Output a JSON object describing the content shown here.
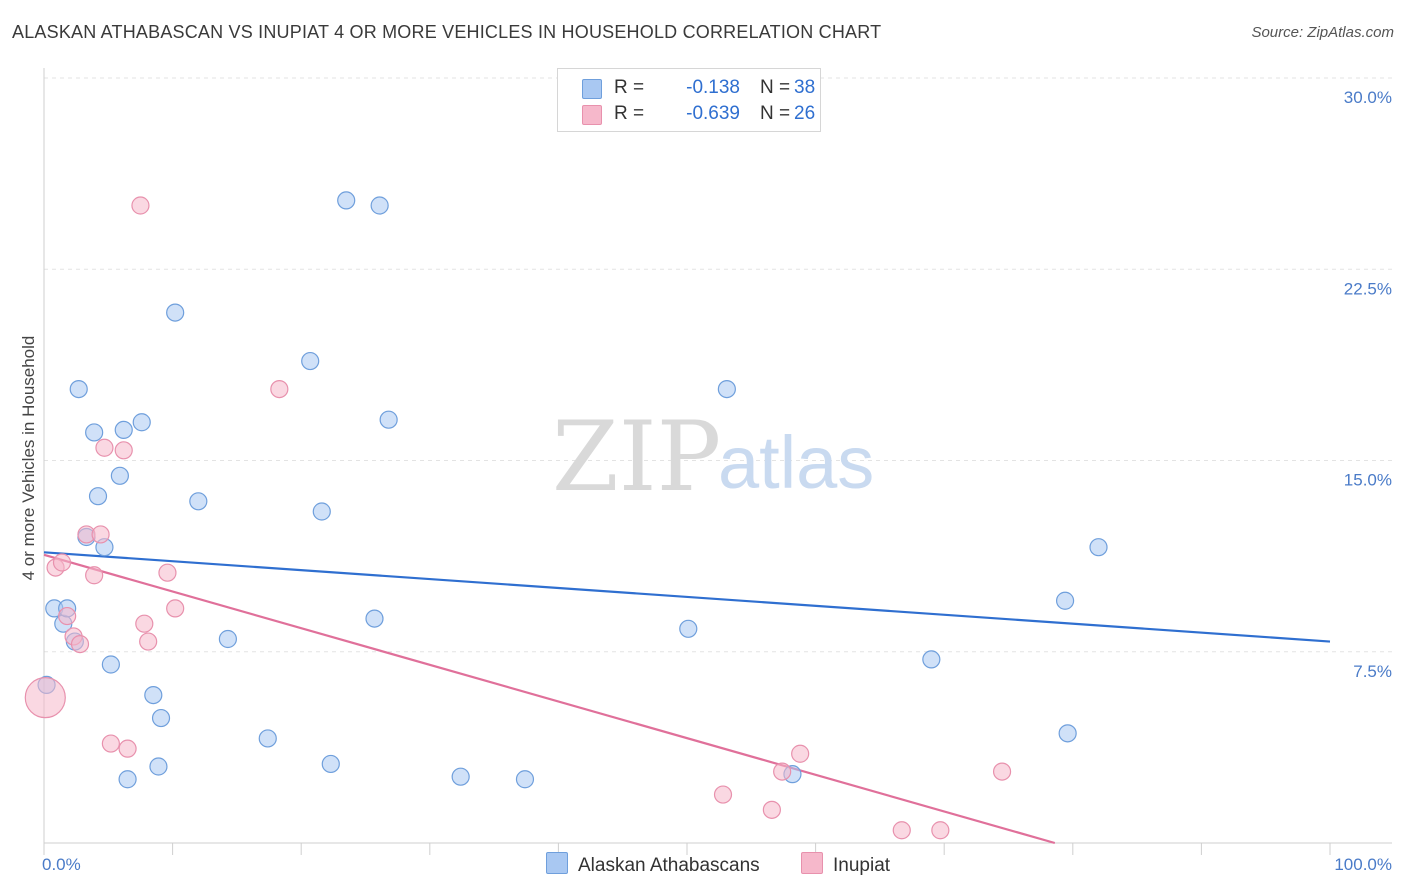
{
  "header": {
    "title": "ALASKAN ATHABASCAN VS INUPIAT 4 OR MORE VEHICLES IN HOUSEHOLD CORRELATION CHART",
    "source": "Source: ZipAtlas.com"
  },
  "watermark": {
    "zip": "ZIP",
    "atlas": "atlas"
  },
  "legend": {
    "rows": [
      {
        "r_label": "R =",
        "r_value": "-0.138",
        "n_label": "N =",
        "n_value": "38",
        "color": "#a9c8f2"
      },
      {
        "r_label": "R =",
        "r_value": "-0.639",
        "n_label": "N =",
        "n_value": "26",
        "color": "#f6b8cb"
      }
    ]
  },
  "bottom_legend": {
    "items": [
      {
        "label": "Alaskan Athabascans",
        "color": "#a9c8f2"
      },
      {
        "label": "Inupiat",
        "color": "#f6b8cb"
      }
    ]
  },
  "chart_data": {
    "type": "scatter",
    "title": "ALASKAN ATHABASCAN VS INUPIAT 4 OR MORE VEHICLES IN HOUSEHOLD CORRELATION CHART",
    "xlabel": "",
    "ylabel": "4 or more Vehicles in Household",
    "xlim": [
      0,
      100
    ],
    "ylim": [
      0,
      30
    ],
    "x_tick_labels": [
      "0.0%",
      "100.0%"
    ],
    "y_ticks": [
      7.5,
      15.0,
      22.5,
      30.0
    ],
    "y_tick_labels": [
      "7.5%",
      "15.0%",
      "22.5%",
      "30.0%"
    ],
    "grid": true,
    "series": [
      {
        "name": "Alaskan Athabascans",
        "color": "#a9c8f2",
        "stroke": "#6f9fdc",
        "trend": {
          "x": [
            0,
            100
          ],
          "y": [
            11.4,
            7.9
          ],
          "color": "#2f6fd0"
        },
        "points": [
          {
            "x": 0.2,
            "y": 6.2
          },
          {
            "x": 0.8,
            "y": 9.2
          },
          {
            "x": 1.5,
            "y": 8.6
          },
          {
            "x": 1.8,
            "y": 9.2
          },
          {
            "x": 2.4,
            "y": 7.9
          },
          {
            "x": 2.7,
            "y": 17.8
          },
          {
            "x": 3.3,
            "y": 12.0
          },
          {
            "x": 3.9,
            "y": 16.1
          },
          {
            "x": 4.2,
            "y": 13.6
          },
          {
            "x": 4.7,
            "y": 11.6
          },
          {
            "x": 5.2,
            "y": 7.0
          },
          {
            "x": 5.9,
            "y": 14.4
          },
          {
            "x": 6.2,
            "y": 16.2
          },
          {
            "x": 6.5,
            "y": 2.5
          },
          {
            "x": 7.6,
            "y": 16.5
          },
          {
            "x": 8.5,
            "y": 5.8
          },
          {
            "x": 8.9,
            "y": 3.0
          },
          {
            "x": 9.1,
            "y": 4.9
          },
          {
            "x": 10.2,
            "y": 20.8
          },
          {
            "x": 12.0,
            "y": 13.4
          },
          {
            "x": 14.3,
            "y": 8.0
          },
          {
            "x": 17.4,
            "y": 4.1
          },
          {
            "x": 20.7,
            "y": 18.9
          },
          {
            "x": 21.6,
            "y": 13.0
          },
          {
            "x": 22.3,
            "y": 3.1
          },
          {
            "x": 23.5,
            "y": 25.2
          },
          {
            "x": 26.1,
            "y": 25.0
          },
          {
            "x": 25.7,
            "y": 8.8
          },
          {
            "x": 26.8,
            "y": 16.6
          },
          {
            "x": 32.4,
            "y": 2.6
          },
          {
            "x": 37.4,
            "y": 2.5
          },
          {
            "x": 50.1,
            "y": 8.4
          },
          {
            "x": 53.1,
            "y": 17.8
          },
          {
            "x": 58.2,
            "y": 2.7
          },
          {
            "x": 69.0,
            "y": 7.2
          },
          {
            "x": 79.4,
            "y": 9.5
          },
          {
            "x": 79.6,
            "y": 4.3
          },
          {
            "x": 82.0,
            "y": 11.6
          }
        ]
      },
      {
        "name": "Inupiat",
        "color": "#f6b8cb",
        "stroke": "#e891ad",
        "trend": {
          "x": [
            0,
            78.6
          ],
          "y": [
            11.3,
            0
          ],
          "color": "#e0709a"
        },
        "points": [
          {
            "x": 0.1,
            "y": 5.7,
            "big": true
          },
          {
            "x": 0.9,
            "y": 10.8
          },
          {
            "x": 1.4,
            "y": 11.0
          },
          {
            "x": 1.8,
            "y": 8.9
          },
          {
            "x": 2.3,
            "y": 8.1
          },
          {
            "x": 2.8,
            "y": 7.8
          },
          {
            "x": 3.3,
            "y": 12.1
          },
          {
            "x": 3.9,
            "y": 10.5
          },
          {
            "x": 4.4,
            "y": 12.1
          },
          {
            "x": 4.7,
            "y": 15.5
          },
          {
            "x": 5.2,
            "y": 3.9
          },
          {
            "x": 6.2,
            "y": 15.4
          },
          {
            "x": 6.5,
            "y": 3.7
          },
          {
            "x": 7.5,
            "y": 25.0
          },
          {
            "x": 7.8,
            "y": 8.6
          },
          {
            "x": 8.1,
            "y": 7.9
          },
          {
            "x": 9.6,
            "y": 10.6
          },
          {
            "x": 10.2,
            "y": 9.2
          },
          {
            "x": 18.3,
            "y": 17.8
          },
          {
            "x": 52.8,
            "y": 1.9
          },
          {
            "x": 56.6,
            "y": 1.3
          },
          {
            "x": 57.4,
            "y": 2.8
          },
          {
            "x": 58.8,
            "y": 3.5
          },
          {
            "x": 66.7,
            "y": 0.5
          },
          {
            "x": 69.7,
            "y": 0.5
          },
          {
            "x": 74.5,
            "y": 2.8
          }
        ]
      }
    ]
  }
}
